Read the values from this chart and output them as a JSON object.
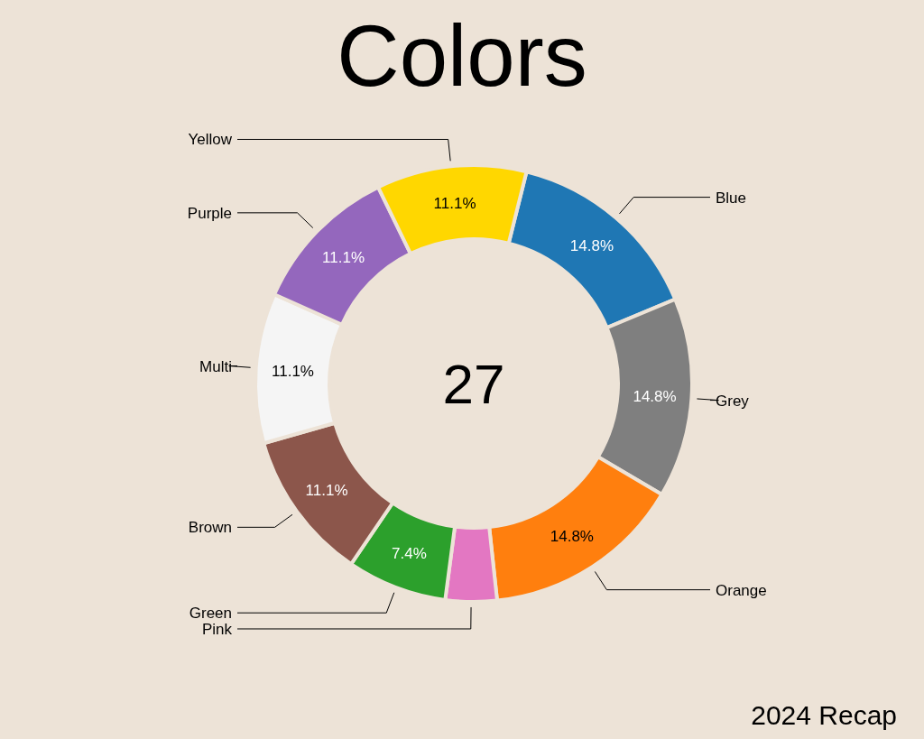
{
  "chart_data": {
    "type": "donut",
    "title": "Colors",
    "categories": [
      "Blue",
      "Grey",
      "Orange",
      "Pink",
      "Green",
      "Brown",
      "Multi",
      "Purple",
      "Yellow"
    ],
    "values": [
      14.8,
      14.8,
      14.8,
      3.8,
      7.4,
      11.1,
      11.1,
      11.1,
      11.1
    ],
    "value_labels": [
      "14.8%",
      "14.8%",
      "14.8%",
      null,
      "7.4%",
      "11.1%",
      "11.1%",
      "11.1%",
      "11.1%"
    ],
    "colors": [
      "#1f77b4",
      "#7f7f7f",
      "#ff7f0e",
      "#e377c2",
      "#2ca02c",
      "#8c564b",
      "#f5f5f5",
      "#9467bd",
      "#ffd700"
    ],
    "annotations": [
      "27",
      "2024 Recap"
    ]
  }
}
